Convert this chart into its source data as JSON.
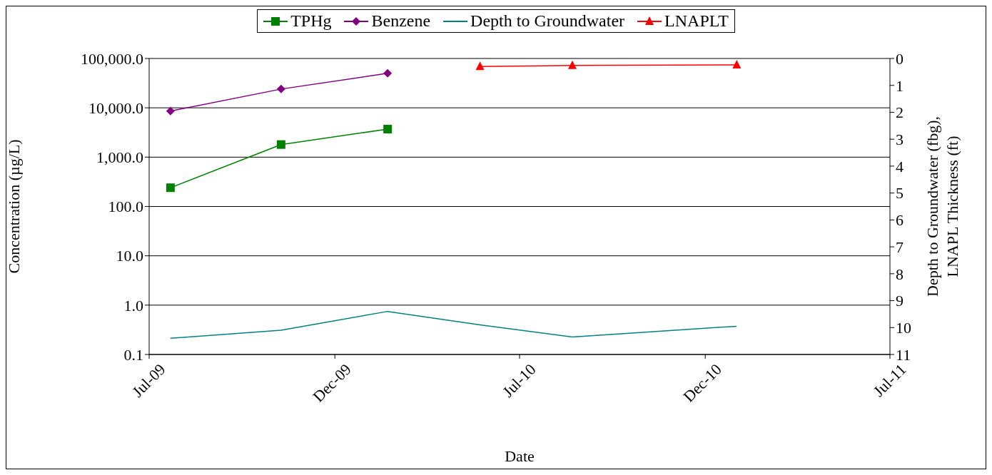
{
  "chart_data": {
    "type": "line",
    "xlabel": "Date",
    "ylabel": "Concentration (µg/L)",
    "y2label": "Depth to Groundwater (fbg), LNAPL Thickness (ft)",
    "series": [
      {
        "name": "TPHg",
        "color": "#008000",
        "marker": "square",
        "x": [
          "2009-07-22",
          "2009-11-08",
          "2010-02-21"
        ],
        "values": [
          240,
          1800,
          3700
        ]
      },
      {
        "name": "Benzene",
        "color": "#800080",
        "marker": "diamond",
        "x": [
          "2009-07-22",
          "2009-11-08",
          "2010-02-21"
        ],
        "values": [
          8600,
          24000,
          50000
        ]
      },
      {
        "name": "Depth to Groundwater",
        "color": "#008080",
        "marker": "none",
        "axis": "y2",
        "x": [
          "2009-07-22",
          "2009-11-08",
          "2010-02-21",
          "2010-05-23",
          "2010-08-22",
          "2011-01-31"
        ],
        "values": [
          10.4,
          10.1,
          9.4,
          9.9,
          10.35,
          9.95
        ]
      },
      {
        "name": "LNAPLT",
        "color": "#ff0000",
        "marker": "triangle",
        "axis": "y2",
        "x": [
          "2010-05-23",
          "2010-08-22",
          "2011-01-31"
        ],
        "values": [
          0.3,
          0.26,
          0.24
        ]
      }
    ],
    "xlim": [
      "2009-07-01",
      "2011-07-01"
    ],
    "xticks": [
      {
        "value": "2009-07-01",
        "label": "Jul-09"
      },
      {
        "value": "2009-12-31",
        "label": "Dec-09"
      },
      {
        "value": "2010-07-01",
        "label": "Jul-10"
      },
      {
        "value": "2010-12-31",
        "label": "Dec-10"
      },
      {
        "value": "2011-07-01",
        "label": "Jul-11"
      }
    ],
    "ylim": [
      0.1,
      100000
    ],
    "yticks": [
      {
        "value": 0.1,
        "label": "0.1"
      },
      {
        "value": 1,
        "label": "1.0"
      },
      {
        "value": 10,
        "label": "10.0"
      },
      {
        "value": 100,
        "label": "100.0"
      },
      {
        "value": 1000,
        "label": "1,000.0"
      },
      {
        "value": 10000,
        "label": "10,000.0"
      },
      {
        "value": 100000,
        "label": "100,000.0"
      }
    ],
    "y2lim": [
      11,
      0
    ],
    "y2ticks": [
      0,
      1,
      2,
      3,
      4,
      5,
      6,
      7,
      8,
      9,
      10,
      11
    ],
    "log": "y",
    "grid": "y",
    "legend": "top",
    "line_style": "solid"
  }
}
